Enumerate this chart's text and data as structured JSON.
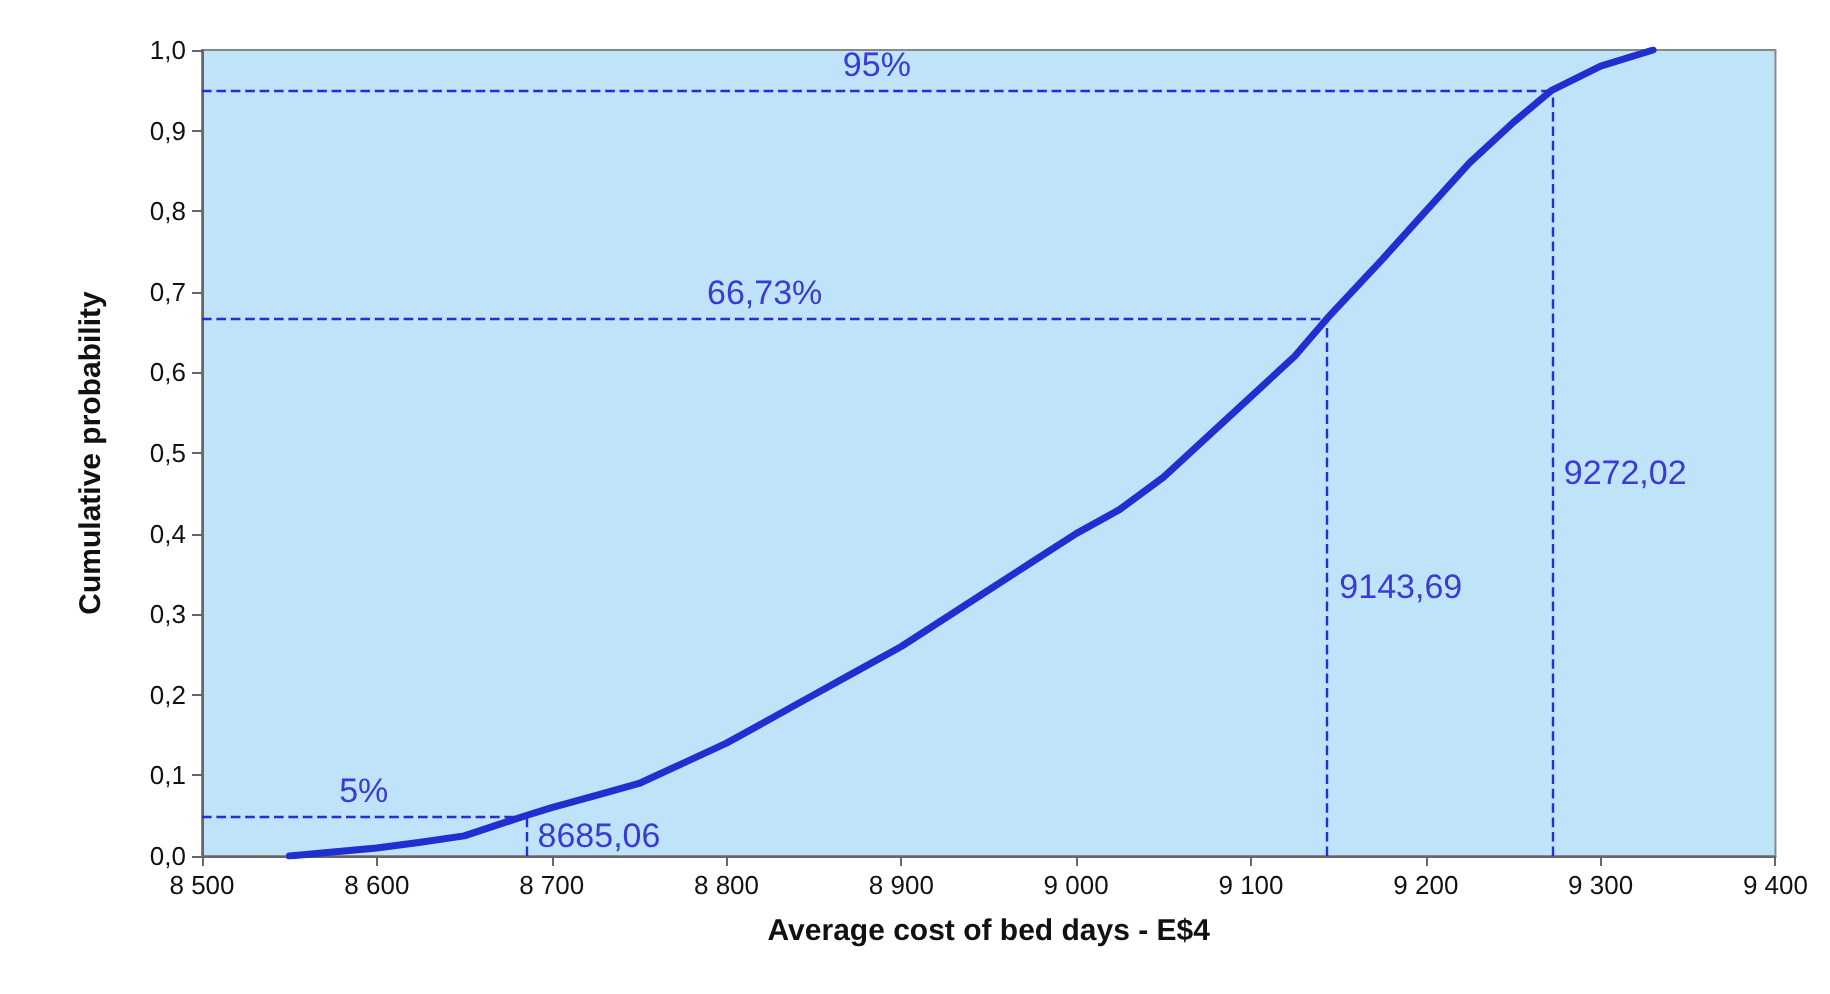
{
  "chart_data": {
    "type": "line",
    "xlabel": "Average cost of bed days - E$4",
    "ylabel": "Cumulative probability",
    "series": [
      {
        "color": "#1f2fd0",
        "x": [
          8550,
          8575,
          8600,
          8625,
          8650,
          8685.06,
          8700,
          8725,
          8750,
          8775,
          8800,
          8825,
          8850,
          8875,
          8900,
          8925,
          8950,
          8975,
          9000,
          9025,
          9050,
          9075,
          9100,
          9125,
          9143.69,
          9175,
          9200,
          9225,
          9250,
          9272.02,
          9300,
          9330
        ],
        "values": [
          0,
          0.005,
          0.01,
          0.017,
          0.025,
          0.05,
          0.06,
          0.075,
          0.09,
          0.115,
          0.14,
          0.17,
          0.2,
          0.23,
          0.26,
          0.295,
          0.33,
          0.365,
          0.4,
          0.43,
          0.47,
          0.52,
          0.57,
          0.62,
          0.6673,
          0.74,
          0.8,
          0.86,
          0.91,
          0.95,
          0.98,
          1.0
        ]
      }
    ],
    "xlim": [
      8500,
      9400
    ],
    "xticks": [
      {
        "value": 8500,
        "label": "8 500"
      },
      {
        "value": 8600,
        "label": "8 600"
      },
      {
        "value": 8700,
        "label": "8 700"
      },
      {
        "value": 8800,
        "label": "8 800"
      },
      {
        "value": 8900,
        "label": "8 900"
      },
      {
        "value": 9000,
        "label": "9 000"
      },
      {
        "value": 9100,
        "label": "9 100"
      },
      {
        "value": 9200,
        "label": "9 200"
      },
      {
        "value": 9300,
        "label": "9 300"
      },
      {
        "value": 9400,
        "label": "9 400"
      }
    ],
    "ylim": [
      0,
      1
    ],
    "yticks": [
      {
        "value": 0,
        "label": "0,0"
      },
      {
        "value": 0.1,
        "label": "0,1"
      },
      {
        "value": 0.2,
        "label": "0,2"
      },
      {
        "value": 0.3,
        "label": "0,3"
      },
      {
        "value": 0.4,
        "label": "0,4"
      },
      {
        "value": 0.5,
        "label": "0,5"
      },
      {
        "value": 0.6,
        "label": "0,6"
      },
      {
        "value": 0.7,
        "label": "0,7"
      },
      {
        "value": 0.8,
        "label": "0,8"
      },
      {
        "value": 0.9,
        "label": "0,9"
      },
      {
        "value": 1,
        "label": "1,0"
      }
    ],
    "ref_lines": [
      {
        "axis": "y",
        "value": 0.05,
        "label": "5%",
        "color": "#2a2ad8",
        "line_style": "dashed"
      },
      {
        "axis": "x",
        "value": 8685.06,
        "label": "8685,06",
        "color": "#2a2ad8",
        "line_style": "dashed"
      },
      {
        "axis": "y",
        "value": 0.6673,
        "label": "66,73%",
        "color": "#2a2ad8",
        "line_style": "dashed"
      },
      {
        "axis": "x",
        "value": 9143.69,
        "label": "9143,69",
        "color": "#2a2ad8",
        "line_style": "dashed"
      },
      {
        "axis": "y",
        "value": 0.95,
        "label": "95%",
        "color": "#2a2ad8",
        "line_style": "dashed"
      },
      {
        "axis": "x",
        "value": 9272.02,
        "label": "9272,02",
        "color": "#2a2ad8",
        "line_style": "dashed"
      }
    ],
    "grid": false,
    "marker": "none",
    "line_style": "solid"
  }
}
